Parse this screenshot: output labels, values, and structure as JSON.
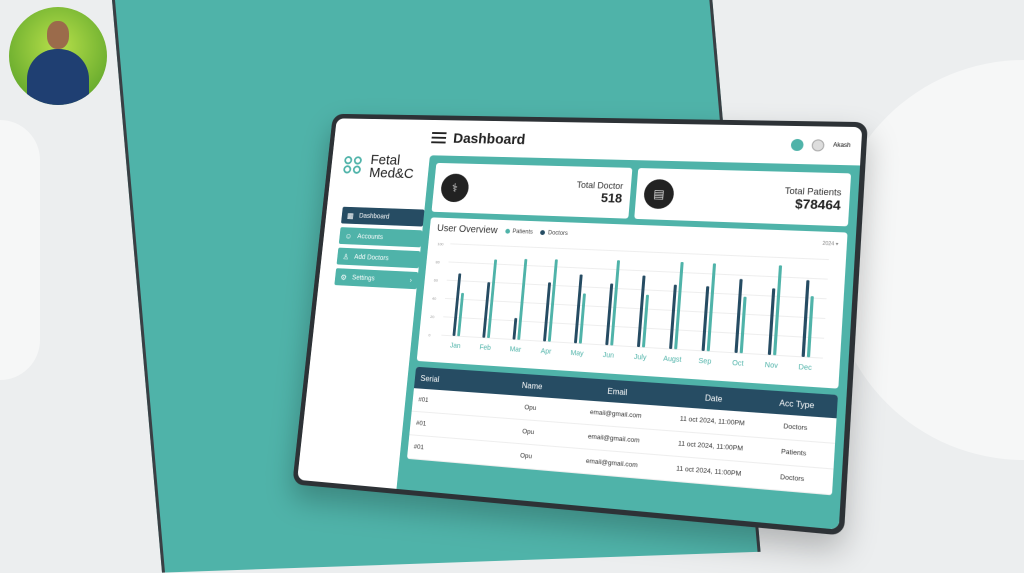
{
  "header": {
    "title": "Dashboard",
    "user_name": "Akash"
  },
  "logo": {
    "line1": "Fetal",
    "line2": "Med&C"
  },
  "sidebar": {
    "items": [
      {
        "label": "Dashboard",
        "icon": "grid-icon",
        "active": true
      },
      {
        "label": "Accounts",
        "icon": "users-icon"
      },
      {
        "label": "Add Doctors",
        "icon": "add-user-icon"
      },
      {
        "label": "Settings",
        "icon": "gear-icon"
      }
    ]
  },
  "cards": [
    {
      "label": "Total Doctor",
      "value": "518",
      "icon": "doctor-icon"
    },
    {
      "label": "Total Patients",
      "value": "$78464",
      "icon": "hospital-bed-icon"
    }
  ],
  "chart_data": {
    "type": "bar",
    "title": "User Overview",
    "year_select": "2024",
    "categories": [
      "Jan",
      "Feb",
      "Mar",
      "Apr",
      "May",
      "Jun",
      "July",
      "Augst",
      "Sep",
      "Oct",
      "Nov",
      "Dec"
    ],
    "ylim": [
      0,
      100
    ],
    "yticks": [
      "0",
      "20",
      "40",
      "60",
      "80",
      "100"
    ],
    "grid": true,
    "legend": "top-left",
    "series": [
      {
        "name": "Doctors",
        "color": "#264c63",
        "values": [
          68,
          60,
          23,
          63,
          73,
          65,
          75,
          67,
          67,
          76,
          68,
          78
        ]
      },
      {
        "name": "Patients",
        "color": "#4fb3a9",
        "values": [
          47,
          85,
          87,
          88,
          53,
          90,
          55,
          91,
          91,
          58,
          92,
          62
        ]
      }
    ]
  },
  "table": {
    "headers": [
      "Serial",
      "Name",
      "Email",
      "Date",
      "Acc Type"
    ],
    "rows": [
      [
        "#01",
        "Opu",
        "email@gmail.com",
        "11 oct 2024, 11:00PM",
        "Doctors"
      ],
      [
        "#01",
        "Opu",
        "email@gmail.com",
        "11 oct 2024, 11:00PM",
        "Patients"
      ],
      [
        "#01",
        "Opu",
        "email@gmail.com",
        "11 oct 2024, 11:00PM",
        "Doctors"
      ]
    ]
  },
  "colors": {
    "teal": "#4fb3a9",
    "navy": "#264c63"
  }
}
